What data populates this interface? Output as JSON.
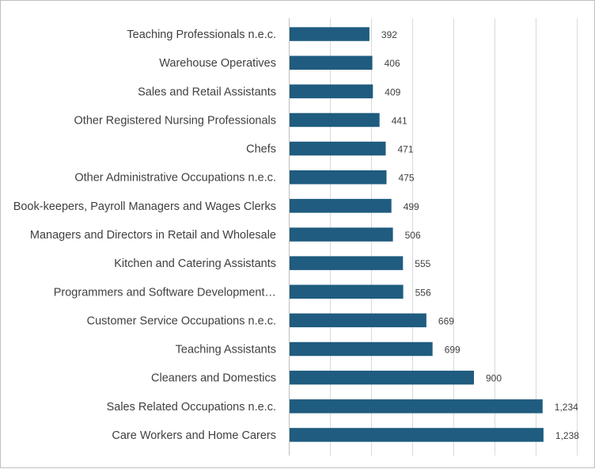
{
  "chart_data": {
    "type": "bar",
    "orientation": "horizontal",
    "categories": [
      "Teaching Professionals n.e.c.",
      "Warehouse Operatives",
      "Sales and Retail Assistants",
      "Other Registered Nursing Professionals",
      "Chefs",
      "Other Administrative Occupations n.e.c.",
      "Book-keepers, Payroll Managers and Wages Clerks",
      "Managers and Directors in Retail and Wholesale",
      "Kitchen and Catering Assistants",
      "Programmers and Software Development…",
      "Customer Service Occupations n.e.c.",
      "Teaching Assistants",
      "Cleaners and Domestics",
      "Sales Related Occupations n.e.c.",
      "Care Workers and Home Carers"
    ],
    "values": [
      392,
      406,
      409,
      441,
      471,
      475,
      499,
      506,
      555,
      556,
      669,
      699,
      900,
      1234,
      1238
    ],
    "data_labels": [
      "392",
      "406",
      "409",
      "441",
      "471",
      "475",
      "499",
      "506",
      "555",
      "556",
      "669",
      "699",
      "900",
      "1,234",
      "1,238"
    ],
    "title": "",
    "xlabel": "",
    "ylabel": "",
    "xlim": [
      0,
      1400
    ],
    "x_tick_labels_shown": false,
    "grid": true,
    "legend": "none",
    "bar_color": "#1f5c7f",
    "gridline_color": "#d9d9d9",
    "label_color": "#404040"
  }
}
